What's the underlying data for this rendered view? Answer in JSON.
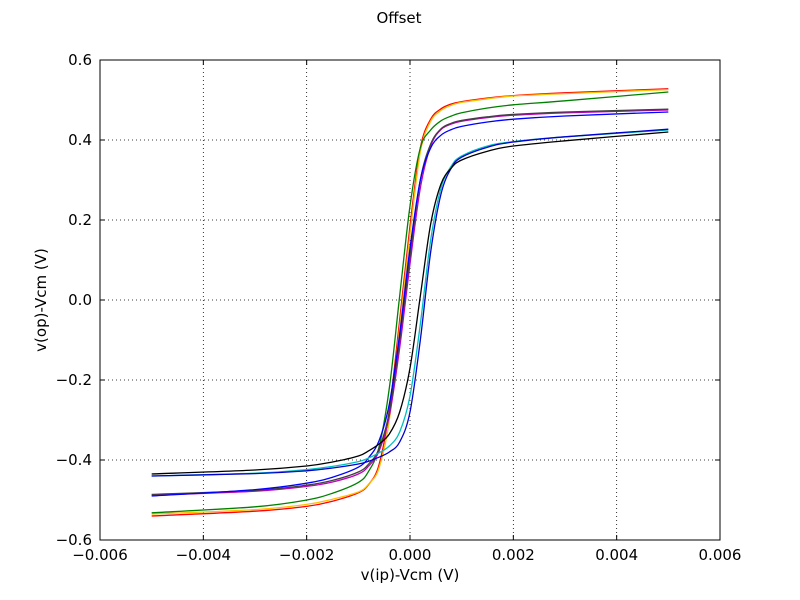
{
  "chart_data": {
    "type": "line",
    "title": "Offset",
    "xlabel": "v(ip)-Vcm (V)",
    "ylabel": "v(op)-Vcm (V)",
    "xlim": [
      -0.006,
      0.006
    ],
    "ylim": [
      -0.6,
      0.6
    ],
    "grid": true,
    "x_ticks": [
      "−0.006",
      "−0.004",
      "−0.002",
      "0.000",
      "0.002",
      "0.004",
      "0.006"
    ],
    "y_ticks": [
      "−0.6",
      "−0.4",
      "−0.2",
      "0.0",
      "0.2",
      "0.4",
      "0.6"
    ],
    "x": [
      -0.005,
      -0.003,
      -0.002,
      -0.0015,
      -0.001,
      -0.0008,
      -0.0006,
      -0.0004,
      -0.0002,
      0.0,
      0.0002,
      0.0004,
      0.0006,
      0.0008,
      0.001,
      0.0015,
      0.002,
      0.003,
      0.005
    ],
    "series": [
      {
        "color": "#ff0000",
        "values": [
          -0.54,
          -0.528,
          -0.516,
          -0.503,
          -0.482,
          -0.461,
          -0.412,
          -0.275,
          -0.05,
          0.185,
          0.38,
          0.452,
          0.478,
          0.49,
          0.496,
          0.505,
          0.511,
          0.518,
          0.528
        ]
      },
      {
        "color": "#ffbf00",
        "values": [
          -0.535,
          -0.524,
          -0.511,
          -0.498,
          -0.48,
          -0.46,
          -0.42,
          -0.3,
          -0.07,
          0.165,
          0.37,
          0.447,
          0.474,
          0.487,
          0.494,
          0.503,
          0.51,
          0.516,
          0.526
        ]
      },
      {
        "color": "#008000",
        "values": [
          -0.532,
          -0.517,
          -0.5,
          -0.483,
          -0.456,
          -0.428,
          -0.368,
          -0.22,
          0.01,
          0.235,
          0.38,
          0.425,
          0.448,
          0.46,
          0.468,
          0.48,
          0.488,
          0.498,
          0.52
        ]
      },
      {
        "color": "#bf00bf",
        "values": [
          -0.488,
          -0.478,
          -0.466,
          -0.455,
          -0.435,
          -0.415,
          -0.378,
          -0.29,
          -0.12,
          0.09,
          0.28,
          0.385,
          0.426,
          0.44,
          0.447,
          0.456,
          0.462,
          0.468,
          0.475
        ]
      },
      {
        "color": "#404040",
        "values": [
          -0.486,
          -0.476,
          -0.463,
          -0.451,
          -0.43,
          -0.41,
          -0.372,
          -0.28,
          -0.1,
          0.11,
          0.3,
          0.39,
          0.428,
          0.442,
          0.449,
          0.458,
          0.464,
          0.47,
          0.477
        ]
      },
      {
        "color": "#0000ff",
        "values": [
          -0.49,
          -0.474,
          -0.458,
          -0.443,
          -0.418,
          -0.394,
          -0.352,
          -0.26,
          -0.085,
          0.13,
          0.3,
          0.38,
          0.412,
          0.426,
          0.434,
          0.445,
          0.452,
          0.46,
          0.47
        ]
      },
      {
        "color": "#00bfbf",
        "values": [
          -0.44,
          -0.433,
          -0.424,
          -0.416,
          -0.404,
          -0.395,
          -0.382,
          -0.365,
          -0.33,
          -0.24,
          -0.06,
          0.15,
          0.28,
          0.335,
          0.36,
          0.385,
          0.396,
          0.408,
          0.425
        ]
      },
      {
        "color": "#0000cc",
        "values": [
          -0.44,
          -0.434,
          -0.427,
          -0.42,
          -0.41,
          -0.403,
          -0.393,
          -0.38,
          -0.355,
          -0.28,
          -0.1,
          0.12,
          0.265,
          0.33,
          0.357,
          0.382,
          0.395,
          0.408,
          0.427
        ]
      },
      {
        "color": "#000000",
        "values": [
          -0.435,
          -0.425,
          -0.415,
          -0.405,
          -0.39,
          -0.377,
          -0.36,
          -0.335,
          -0.28,
          -0.17,
          0.01,
          0.19,
          0.29,
          0.33,
          0.35,
          0.372,
          0.385,
          0.398,
          0.42
        ]
      }
    ]
  }
}
